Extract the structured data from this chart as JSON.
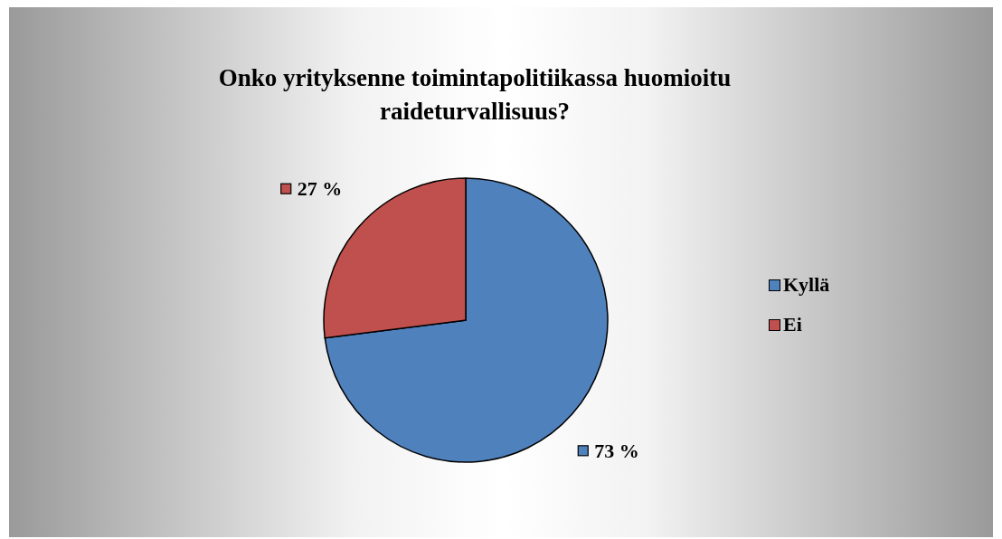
{
  "chart_data": {
    "type": "pie",
    "title": "Onko yrityksenne toimintapolitiikassa huomioitu raideturvallisuus?",
    "categories": [
      "Kyllä",
      "Ei"
    ],
    "values": [
      73,
      27
    ],
    "colors": [
      "#4f81bd",
      "#c0504d"
    ],
    "value_labels": [
      "73 %",
      "27 %"
    ],
    "legend": "right"
  }
}
